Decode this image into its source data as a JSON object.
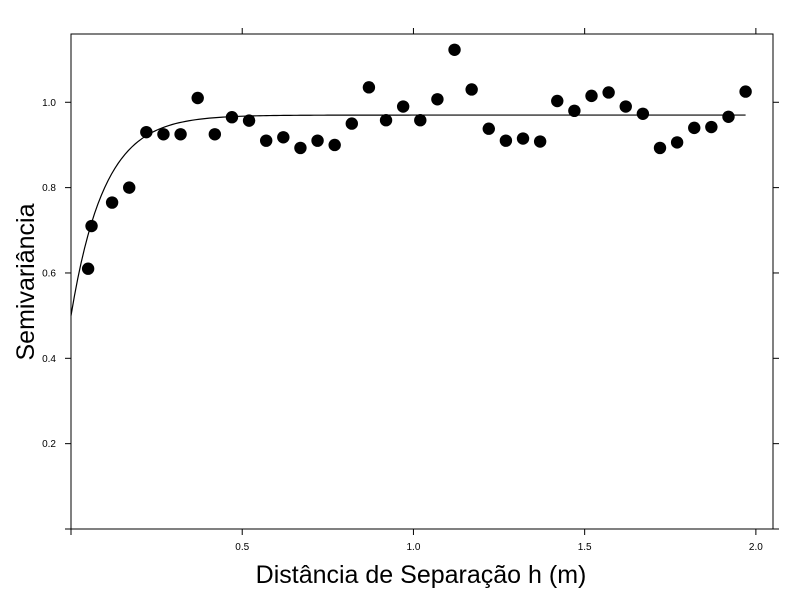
{
  "chart_data": {
    "type": "scatter",
    "title": "",
    "xlabel": "Distância de Separação h (m)",
    "ylabel": "Semivariância",
    "xlim": [
      0,
      2.05
    ],
    "ylim": [
      0,
      1.16
    ],
    "grid": false,
    "x_ticks": [
      {
        "value": 0.5,
        "label": "0.5"
      },
      {
        "value": 1.0,
        "label": "1.0"
      },
      {
        "value": 1.5,
        "label": "1.5"
      },
      {
        "value": 2.0,
        "label": "2.0"
      }
    ],
    "y_ticks": [
      {
        "value": 0.2,
        "label": "0.2"
      },
      {
        "value": 0.4,
        "label": "0.4"
      },
      {
        "value": 0.6,
        "label": "0.6"
      },
      {
        "value": 0.8,
        "label": "0.8"
      },
      {
        "value": 1.0,
        "label": "1.0"
      }
    ],
    "series": [
      {
        "type": "scatter",
        "color": "#000000",
        "x": [
          0.05,
          0.06,
          0.12,
          0.17,
          0.22,
          0.27,
          0.32,
          0.37,
          0.42,
          0.47,
          0.52,
          0.57,
          0.62,
          0.67,
          0.72,
          0.77,
          0.82,
          0.87,
          0.92,
          0.97,
          1.02,
          1.07,
          1.12,
          1.17,
          1.22,
          1.27,
          1.32,
          1.37,
          1.42,
          1.47,
          1.52,
          1.57,
          1.62,
          1.67,
          1.72,
          1.77,
          1.82,
          1.87,
          1.92,
          1.97
        ],
        "y": [
          0.61,
          0.71,
          0.765,
          0.8,
          0.93,
          0.925,
          0.925,
          1.01,
          0.925,
          0.965,
          0.957,
          0.91,
          0.918,
          0.893,
          0.91,
          0.9,
          0.95,
          1.035,
          0.958,
          0.99,
          0.958,
          1.007,
          1.123,
          1.03,
          0.938,
          0.91,
          0.915,
          0.908,
          1.003,
          0.98,
          1.015,
          1.023,
          0.99,
          0.973,
          0.893,
          0.906,
          0.94,
          0.942,
          0.966,
          1.025
        ]
      },
      {
        "type": "line",
        "color": "#000000",
        "model": "exponential",
        "nugget": 0.5,
        "sill": 0.97,
        "range": 0.29,
        "x_range": [
          0,
          1.97
        ]
      }
    ]
  }
}
